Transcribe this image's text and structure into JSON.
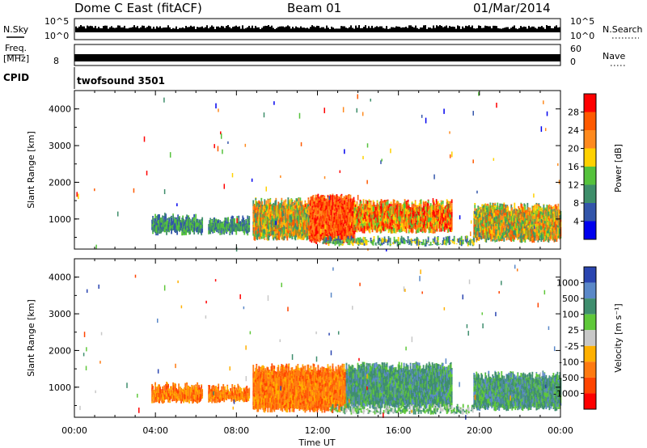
{
  "header": {
    "station": "Dome C East (fitACF)",
    "beam": "Beam 01",
    "date": "01/Mar/2014"
  },
  "top_panels": {
    "nsky": {
      "label": "N.Sky",
      "ticks": [
        "10^5",
        "10^0"
      ]
    },
    "nsearch": {
      "label": "N.Search",
      "ticks": [
        "10^5",
        "10^0"
      ]
    },
    "freq": {
      "label_line1": "Freq.",
      "label_line2": "[MHz]",
      "ticks": [
        "8"
      ]
    },
    "nave": {
      "label": "Nave",
      "ticks": [
        "60",
        "0"
      ]
    },
    "cpid": {
      "label": "CPID",
      "program": "twofsound 3501"
    }
  },
  "chart_data": [
    {
      "type": "heatmap",
      "parameter": "Power",
      "ylabel": "Slant Range [km]",
      "xlabel": "Time UT",
      "x_ticks": [
        "00:00",
        "04:00",
        "08:00",
        "12:00",
        "16:00",
        "20:00",
        "00:00"
      ],
      "x_range_hours": [
        0,
        24
      ],
      "y_ticks": [
        "1000",
        "2000",
        "3000",
        "4000"
      ],
      "ylim": [
        180,
        4500
      ],
      "colorbar": {
        "label": "Power [dB]",
        "ticks": [
          "28",
          "24",
          "20",
          "16",
          "12",
          "8",
          "4"
        ],
        "colors": [
          "#ff0000",
          "#ff5a00",
          "#ff8a1e",
          "#ffd100",
          "#55c23c",
          "#3e8e6a",
          "#3355aa",
          "#0000ee"
        ]
      },
      "echo_regions": [
        {
          "t_start": 3.8,
          "t_end": 6.3,
          "r_low": 550,
          "r_high": 1150,
          "value": "8-12 dB"
        },
        {
          "t_start": 6.6,
          "t_end": 8.6,
          "r_low": 550,
          "r_high": 1100,
          "value": "8-12 dB"
        },
        {
          "t_start": 8.8,
          "t_end": 11.6,
          "r_low": 400,
          "r_high": 1600,
          "value": "12-24 dB"
        },
        {
          "t_start": 11.6,
          "t_end": 13.8,
          "r_low": 300,
          "r_high": 1700,
          "value": "20-28+ dB"
        },
        {
          "t_start": 13.8,
          "t_end": 18.6,
          "r_low": 600,
          "r_high": 1550,
          "value": "16-28 dB"
        },
        {
          "t_start": 12.2,
          "t_end": 19.7,
          "r_low": 250,
          "r_high": 550,
          "value": "8-16 dB"
        },
        {
          "t_start": 19.7,
          "t_end": 24,
          "r_low": 350,
          "r_high": 1450,
          "value": "12-24 dB"
        }
      ]
    },
    {
      "type": "heatmap",
      "parameter": "Velocity",
      "ylabel": "Slant Range [km]",
      "xlabel": "Time UT",
      "x_ticks": [
        "00:00",
        "04:00",
        "08:00",
        "12:00",
        "16:00",
        "20:00",
        "00:00"
      ],
      "x_range_hours": [
        0,
        24
      ],
      "y_ticks": [
        "1000",
        "2000",
        "3000",
        "4000"
      ],
      "ylim": [
        180,
        4500
      ],
      "colorbar": {
        "label": "Velocity [m s⁻¹]",
        "ticks": [
          "1000",
          "500",
          "100",
          "25",
          "-25",
          "-100",
          "-500",
          "-1000"
        ],
        "colors": [
          "#2a45b0",
          "#5a88c8",
          "#3f8e6e",
          "#5fc83a",
          "#c8c8c8",
          "#ffb000",
          "#ff7a10",
          "#ff4400",
          "#ff0000"
        ]
      },
      "echo_regions": [
        {
          "t_start": 3.8,
          "t_end": 6.3,
          "r_low": 550,
          "r_high": 1150,
          "value": "-100 to -500"
        },
        {
          "t_start": 6.6,
          "t_end": 8.6,
          "r_low": 550,
          "r_high": 1100,
          "value": "-100 to -500"
        },
        {
          "t_start": 8.8,
          "t_end": 13.4,
          "r_low": 300,
          "r_high": 1650,
          "value": "-100 to -500"
        },
        {
          "t_start": 13.4,
          "t_end": 18.6,
          "r_low": 400,
          "r_high": 1700,
          "value": "100 to 500"
        },
        {
          "t_start": 12.6,
          "t_end": 19.7,
          "r_low": 250,
          "r_high": 550,
          "value": "25 to 100"
        },
        {
          "t_start": 19.7,
          "t_end": 24,
          "r_low": 350,
          "r_high": 1450,
          "value": "100 to 500"
        }
      ]
    }
  ],
  "time_label": "Time UT"
}
